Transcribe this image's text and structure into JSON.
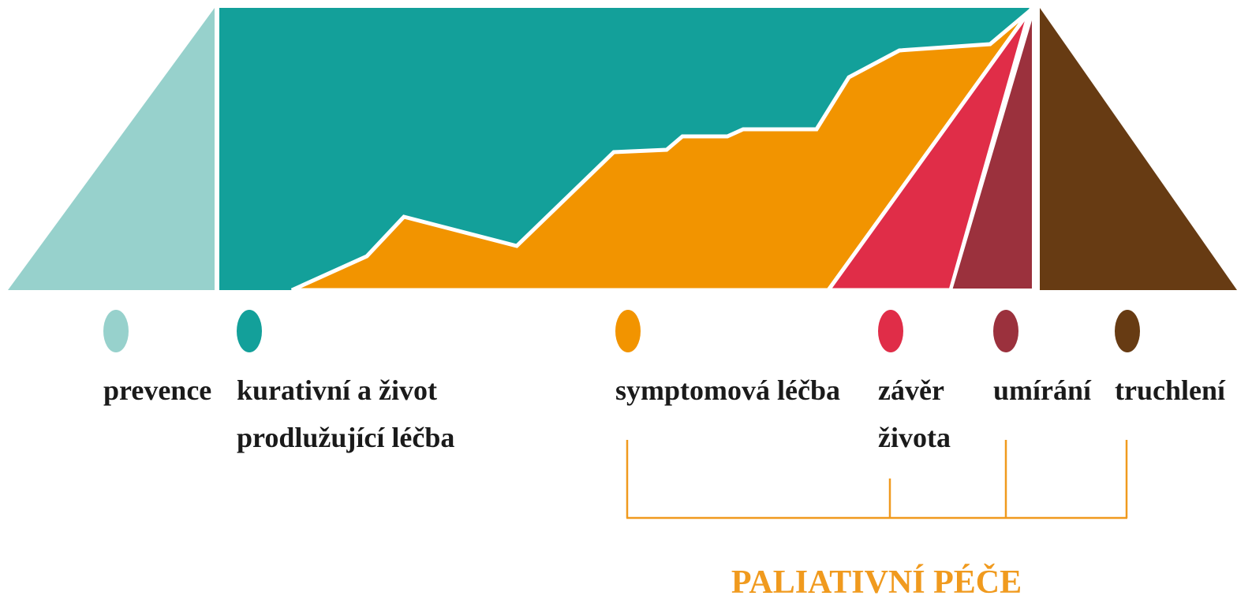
{
  "legend": [
    {
      "lines": [
        "prevence"
      ],
      "color": "#97d1cc"
    },
    {
      "lines": [
        "kurativní a život",
        "prodlužující léčba"
      ],
      "color": "#13a09a"
    },
    {
      "lines": [
        "symptomová léčba"
      ],
      "color": "#f29400"
    },
    {
      "lines": [
        "závěr",
        "života"
      ],
      "color": "#e02d48"
    },
    {
      "lines": [
        "umírání"
      ],
      "color": "#9b313d"
    },
    {
      "lines": [
        "truchlení"
      ],
      "color": "#673b13"
    }
  ],
  "bracket_label": "PALIATIVNÍ PÉČE"
}
